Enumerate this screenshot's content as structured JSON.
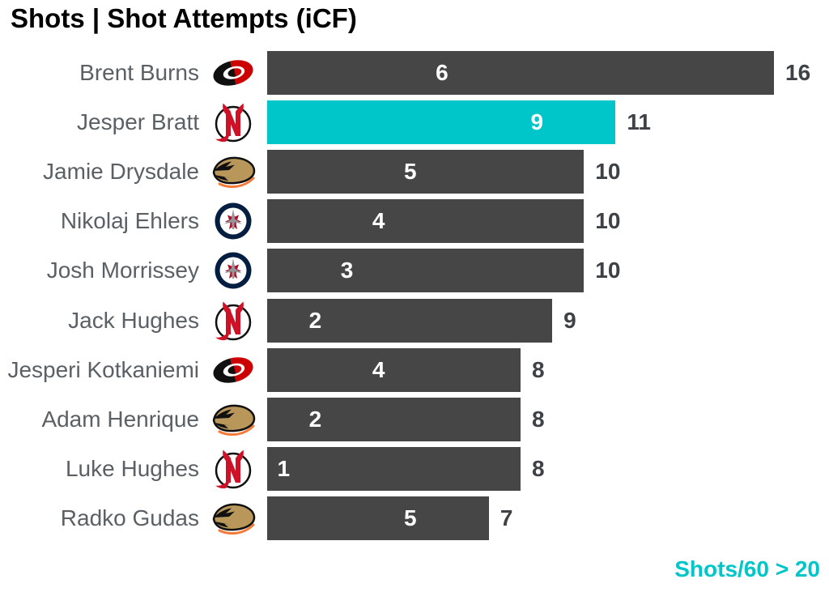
{
  "title": "Shots | Shot Attempts (iCF)",
  "footer": {
    "note": "Shots/60 > 20"
  },
  "colors": {
    "title": "#000000",
    "bar": "#464646",
    "highlight": "#00C6C9",
    "value-inside": "#FFFFFF",
    "value-outside": "#3E4145",
    "player-name": "#5B6065",
    "footer-note": "#00C6C9"
  },
  "chart_data": {
    "type": "bar",
    "orientation": "horizontal",
    "title": "Shots | Shot Attempts (iCF)",
    "categories": [
      "Brent Burns",
      "Jesper Bratt",
      "Jamie Drysdale",
      "Nikolaj Ehlers",
      "Josh Morrissey",
      "Jack Hughes",
      "Jesperi Kotkaniemi",
      "Adam Henrique",
      "Luke Hughes",
      "Radko Gudas"
    ],
    "teams": [
      "CAR",
      "NJD",
      "ANA",
      "WPG",
      "WPG",
      "NJD",
      "CAR",
      "ANA",
      "NJD",
      "ANA"
    ],
    "team_names": {
      "CAR": "Carolina Hurricanes",
      "NJD": "New Jersey Devils",
      "ANA": "Anaheim Ducks",
      "WPG": "Winnipeg Jets"
    },
    "series": [
      {
        "name": "Shots",
        "label_style": "inside-white",
        "values": [
          6,
          9,
          5,
          4,
          3,
          2,
          4,
          2,
          1,
          5
        ]
      },
      {
        "name": "Shot Attempts (iCF)",
        "label_style": "outside-dark",
        "values": [
          16,
          11,
          10,
          10,
          10,
          9,
          8,
          8,
          8,
          7
        ]
      }
    ],
    "xlim": [
      0,
      16
    ],
    "grid": false,
    "legend": false,
    "highlight_index": 1,
    "highlight_category": "Jesper Bratt",
    "annotation": "Shots/60 > 20"
  }
}
